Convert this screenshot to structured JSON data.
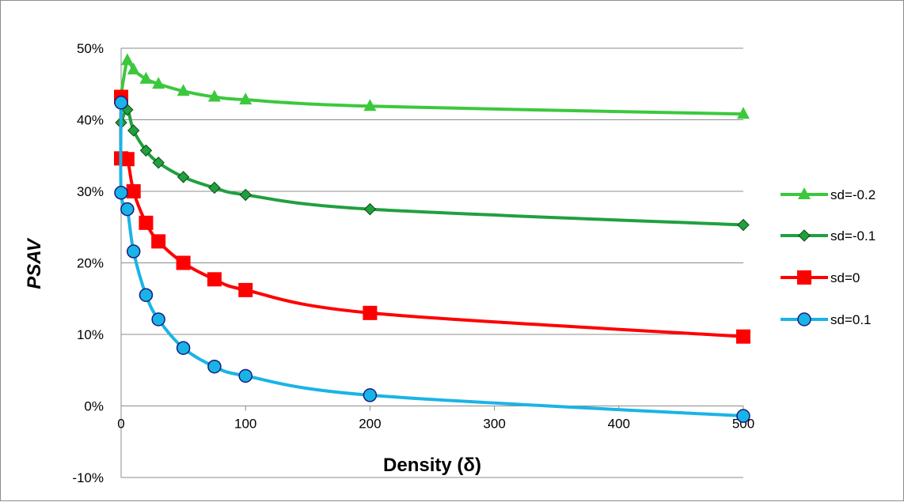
{
  "chart_data": {
    "type": "line",
    "xlabel": "Density (δ)",
    "ylabel": "PSAV",
    "xlim": [
      0,
      500
    ],
    "ylim": [
      -0.1,
      0.5
    ],
    "x_ticks": [
      0,
      100,
      200,
      300,
      400,
      500
    ],
    "x_tick_labels": [
      "0",
      "100",
      "200",
      "300",
      "400",
      "500"
    ],
    "y_ticks": [
      -0.1,
      0,
      0.1,
      0.2,
      0.3,
      0.4,
      0.5
    ],
    "y_tick_labels": [
      "-10%",
      "0%",
      "10%",
      "20%",
      "30%",
      "40%",
      "50%"
    ],
    "grid": "horizontal",
    "legend_position": "right",
    "series": [
      {
        "name": "sd=-0.2",
        "color": "#3cc83c",
        "marker": "triangle",
        "x": [
          0,
          5,
          10,
          20,
          30,
          50,
          75,
          100,
          200,
          500
        ],
        "y": [
          0.435,
          0.483,
          0.47,
          0.457,
          0.45,
          0.44,
          0.432,
          0.428,
          0.419,
          0.408
        ]
      },
      {
        "name": "sd=-0.1",
        "color": "#20a040",
        "marker": "diamond",
        "x": [
          0,
          5,
          10,
          20,
          30,
          50,
          75,
          100,
          200,
          500
        ],
        "y": [
          0.396,
          0.414,
          0.385,
          0.357,
          0.34,
          0.32,
          0.305,
          0.295,
          0.275,
          0.253
        ]
      },
      {
        "name": "sd=0",
        "color": "#ff0000",
        "marker": "square",
        "x": [
          0,
          0,
          5,
          10,
          20,
          30,
          50,
          75,
          100,
          200,
          500
        ],
        "y": [
          0.432,
          0.346,
          0.345,
          0.3,
          0.256,
          0.23,
          0.2,
          0.177,
          0.162,
          0.13,
          0.097
        ]
      },
      {
        "name": "sd=0.1",
        "color": "#19b4e6",
        "marker": "circle",
        "x": [
          0,
          0,
          5,
          10,
          20,
          30,
          50,
          75,
          100,
          200,
          500
        ],
        "y": [
          0.424,
          0.298,
          0.275,
          0.216,
          0.155,
          0.121,
          0.081,
          0.055,
          0.042,
          0.015,
          -0.014
        ]
      }
    ]
  }
}
